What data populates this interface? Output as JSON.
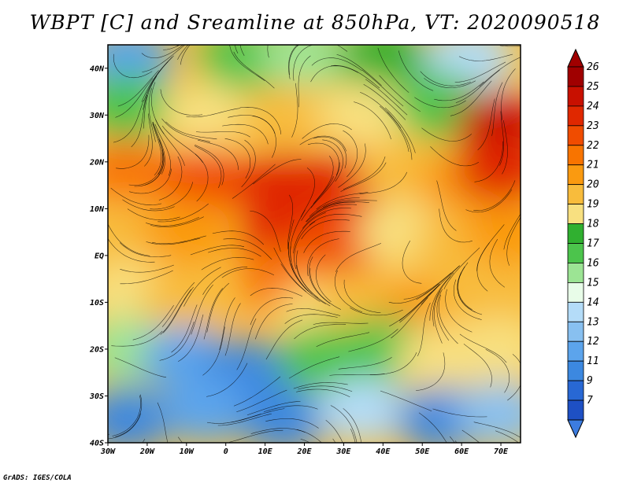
{
  "title": "WBPT [C] and Sreamline at 850hPa, VT: 2020090518",
  "footer": "GrADS: IGES/COLA",
  "map": {
    "lon_range": [
      -30,
      75
    ],
    "lat_range": [
      -40,
      45
    ],
    "lat_ticks": [
      {
        "value": 40,
        "label": "40N"
      },
      {
        "value": 30,
        "label": "30N"
      },
      {
        "value": 20,
        "label": "20N"
      },
      {
        "value": 10,
        "label": "10N"
      },
      {
        "value": 0,
        "label": "EQ"
      },
      {
        "value": -10,
        "label": "10S"
      },
      {
        "value": -20,
        "label": "20S"
      },
      {
        "value": -30,
        "label": "30S"
      },
      {
        "value": -40,
        "label": "40S"
      }
    ],
    "lon_ticks": [
      {
        "value": -30,
        "label": "30W"
      },
      {
        "value": -20,
        "label": "20W"
      },
      {
        "value": -10,
        "label": "10W"
      },
      {
        "value": 0,
        "label": "0"
      },
      {
        "value": 10,
        "label": "10E"
      },
      {
        "value": 20,
        "label": "20E"
      },
      {
        "value": 30,
        "label": "30E"
      },
      {
        "value": 40,
        "label": "40E"
      },
      {
        "value": 50,
        "label": "50E"
      },
      {
        "value": 60,
        "label": "60E"
      },
      {
        "value": 70,
        "label": "70E"
      }
    ],
    "field_regions": [
      {
        "lon": -25,
        "lat": 42,
        "value": 12
      },
      {
        "lon": 5,
        "lat": 42,
        "value": 17
      },
      {
        "lon": 20,
        "lat": 43,
        "value": 16
      },
      {
        "lon": 40,
        "lat": 42,
        "value": 18
      },
      {
        "lon": 62,
        "lat": 42,
        "value": 14
      },
      {
        "lon": -25,
        "lat": 32,
        "value": 17
      },
      {
        "lon": -5,
        "lat": 30,
        "value": 19
      },
      {
        "lon": 15,
        "lat": 30,
        "value": 20
      },
      {
        "lon": 35,
        "lat": 30,
        "value": 19
      },
      {
        "lon": 55,
        "lat": 32,
        "value": 17
      },
      {
        "lon": 70,
        "lat": 28,
        "value": 25
      },
      {
        "lon": -25,
        "lat": 18,
        "value": 22
      },
      {
        "lon": -5,
        "lat": 16,
        "value": 23
      },
      {
        "lon": 15,
        "lat": 15,
        "value": 24
      },
      {
        "lon": 30,
        "lat": 15,
        "value": 24
      },
      {
        "lon": 45,
        "lat": 18,
        "value": 20
      },
      {
        "lon": 60,
        "lat": 15,
        "value": 21
      },
      {
        "lon": 70,
        "lat": 18,
        "value": 24
      },
      {
        "lon": -25,
        "lat": 5,
        "value": 20
      },
      {
        "lon": -10,
        "lat": 5,
        "value": 21
      },
      {
        "lon": 15,
        "lat": 5,
        "value": 24
      },
      {
        "lon": 30,
        "lat": 3,
        "value": 23
      },
      {
        "lon": 45,
        "lat": 5,
        "value": 19
      },
      {
        "lon": 60,
        "lat": 3,
        "value": 20
      },
      {
        "lon": 72,
        "lat": 5,
        "value": 21
      },
      {
        "lon": -25,
        "lat": -8,
        "value": 19
      },
      {
        "lon": -10,
        "lat": -10,
        "value": 20
      },
      {
        "lon": 15,
        "lat": -5,
        "value": 22
      },
      {
        "lon": 25,
        "lat": -12,
        "value": 19
      },
      {
        "lon": 35,
        "lat": -10,
        "value": 20
      },
      {
        "lon": 50,
        "lat": -12,
        "value": 21
      },
      {
        "lon": 65,
        "lat": -10,
        "value": 20
      },
      {
        "lon": -25,
        "lat": -20,
        "value": 16
      },
      {
        "lon": -10,
        "lat": -22,
        "value": 12
      },
      {
        "lon": 5,
        "lat": -25,
        "value": 11
      },
      {
        "lon": 25,
        "lat": -22,
        "value": 17
      },
      {
        "lon": 40,
        "lat": -20,
        "value": 17
      },
      {
        "lon": 55,
        "lat": -22,
        "value": 19
      },
      {
        "lon": 70,
        "lat": -20,
        "value": 19
      },
      {
        "lon": -25,
        "lat": -35,
        "value": 10
      },
      {
        "lon": -5,
        "lat": -33,
        "value": 12
      },
      {
        "lon": 15,
        "lat": -35,
        "value": 11
      },
      {
        "lon": 35,
        "lat": -33,
        "value": 14
      },
      {
        "lon": 55,
        "lat": -35,
        "value": 11
      },
      {
        "lon": 70,
        "lat": -34,
        "value": 13
      }
    ]
  },
  "colorbar": {
    "levels": [
      {
        "label": "26",
        "color": "#a00000"
      },
      {
        "label": "25",
        "color": "#c81000"
      },
      {
        "label": "24",
        "color": "#e02800"
      },
      {
        "label": "23",
        "color": "#f04c00"
      },
      {
        "label": "22",
        "color": "#f87400"
      },
      {
        "label": "21",
        "color": "#fa9a10"
      },
      {
        "label": "20",
        "color": "#f8bc3c"
      },
      {
        "label": "19",
        "color": "#f8e080"
      },
      {
        "label": "18",
        "color": "#30b030"
      },
      {
        "label": "17",
        "color": "#4cc44c"
      },
      {
        "label": "16",
        "color": "#9ce494"
      },
      {
        "label": "15",
        "color": "#e8fce8"
      },
      {
        "label": "14",
        "color": "#b4dcf8"
      },
      {
        "label": "13",
        "color": "#88c0f0"
      },
      {
        "label": "12",
        "color": "#5ca4ec"
      },
      {
        "label": "11",
        "color": "#3c88e0"
      },
      {
        "label": "9",
        "color": "#2868d4"
      },
      {
        "label": "7",
        "color": "#1e50c4"
      }
    ],
    "bottom_color": "#3c7ce0"
  }
}
